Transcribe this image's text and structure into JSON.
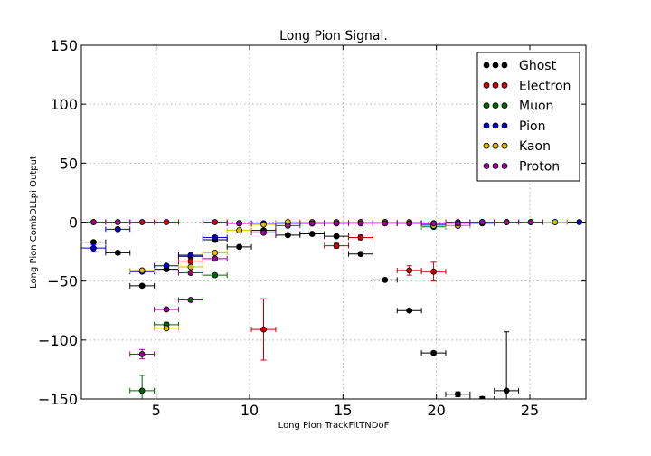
{
  "chart_data": {
    "type": "scatter",
    "title": "Long Pion Signal.",
    "xlabel": "Long Pion TrackFitTNDoF",
    "ylabel": "Long Pion CombDLLpi Output",
    "xlim": [
      1,
      28
    ],
    "ylim": [
      -150,
      150
    ],
    "x_ticks": [
      5,
      10,
      15,
      20,
      25
    ],
    "y_ticks": [
      -150,
      -100,
      -50,
      0,
      50,
      100,
      150
    ],
    "grid": true,
    "legend_position": "top-right",
    "x_err": 0.65,
    "series": [
      {
        "name": "Ghost",
        "color": "#000000",
        "x": [
          1.65,
          2.95,
          4.25,
          5.55,
          6.85,
          8.15,
          9.45,
          10.75,
          12.05,
          13.35,
          14.65,
          15.95,
          17.25,
          18.55,
          19.85,
          21.15,
          22.45,
          23.75,
          25.05
        ],
        "y": [
          -17,
          -26,
          -54,
          -40,
          -29,
          -15,
          -21,
          -7,
          -11,
          -10,
          -12,
          -27,
          -49,
          -75,
          -111,
          -146,
          -150,
          -143,
          null
        ],
        "yerr": [
          1,
          1,
          1,
          1,
          1,
          1,
          1,
          1,
          1,
          1,
          1,
          1,
          1,
          1,
          1,
          2,
          2,
          50,
          0
        ]
      },
      {
        "name": "Electron",
        "color": "#cc0000",
        "x": [
          1.65,
          2.95,
          4.25,
          5.55,
          6.85,
          8.15,
          9.45,
          10.75,
          12.05,
          13.35,
          14.65,
          15.95,
          17.25,
          18.55,
          19.85,
          21.15,
          22.45,
          23.75
        ],
        "y": [
          0,
          0,
          0,
          0,
          -33,
          0,
          -1,
          -91,
          -1,
          -1,
          -20,
          -13,
          0,
          -41,
          -42,
          0,
          0,
          0
        ],
        "yerr": [
          0,
          0,
          0,
          0,
          2,
          0,
          1,
          26,
          1,
          1,
          2,
          2,
          0,
          4,
          8,
          0,
          0,
          0
        ]
      },
      {
        "name": "Muon",
        "color": "#006600",
        "x": [
          4.25,
          5.55,
          6.85,
          8.15,
          19.85
        ],
        "y": [
          -143,
          -87,
          -66,
          -45,
          -4
        ],
        "yerr": [
          13,
          2,
          1,
          1,
          1
        ]
      },
      {
        "name": "Pion",
        "color": "#0000cc",
        "x": [
          1.65,
          2.95,
          4.25,
          5.55,
          6.85,
          8.15,
          9.45,
          10.75,
          12.05,
          13.35,
          14.65,
          15.95,
          17.25,
          18.55,
          19.85,
          21.15,
          22.45,
          23.75,
          25.05,
          26.35,
          27.65
        ],
        "y": [
          -22,
          -6,
          -42,
          -37,
          -28,
          -13,
          -1,
          -1,
          -1,
          -1,
          -1,
          0,
          0,
          -1,
          -2,
          -3,
          -1,
          0,
          0,
          0,
          0
        ],
        "yerr": [
          3,
          1,
          1,
          1,
          1,
          1,
          1,
          1,
          1,
          1,
          1,
          1,
          1,
          1,
          1,
          1,
          1,
          1,
          0,
          0,
          0
        ]
      },
      {
        "name": "Kaon",
        "color": "#ddbb00",
        "x": [
          4.25,
          5.55,
          6.85,
          8.15,
          9.45,
          10.75,
          12.05,
          13.35,
          14.65,
          15.95,
          17.25,
          18.55,
          19.85,
          21.15,
          22.45,
          23.75,
          25.05,
          26.35
        ],
        "y": [
          -41,
          -90,
          -38,
          -26,
          -7,
          -2,
          0,
          0,
          0,
          0,
          0,
          0,
          -3,
          -3,
          0,
          0,
          0,
          0
        ],
        "yerr": [
          1,
          1,
          1,
          1,
          1,
          1,
          1,
          1,
          1,
          1,
          1,
          1,
          1,
          1,
          0,
          0,
          0,
          0
        ]
      },
      {
        "name": "Proton",
        "color": "#990099",
        "x": [
          1.65,
          2.95,
          4.25,
          5.55,
          6.85,
          8.15,
          9.45,
          10.75,
          12.05,
          13.35,
          14.65,
          15.95,
          17.25,
          18.55,
          19.85,
          21.15,
          22.45,
          23.75,
          25.05
        ],
        "y": [
          0,
          0,
          -112,
          -74,
          -43,
          -31,
          -1,
          -9,
          -3,
          -1,
          -1,
          -1,
          -1,
          -1,
          -1,
          -1,
          0,
          0,
          0
        ],
        "yerr": [
          0,
          0,
          4,
          1,
          1,
          1,
          1,
          1,
          1,
          1,
          1,
          1,
          1,
          1,
          1,
          1,
          0,
          0,
          0
        ]
      }
    ]
  }
}
